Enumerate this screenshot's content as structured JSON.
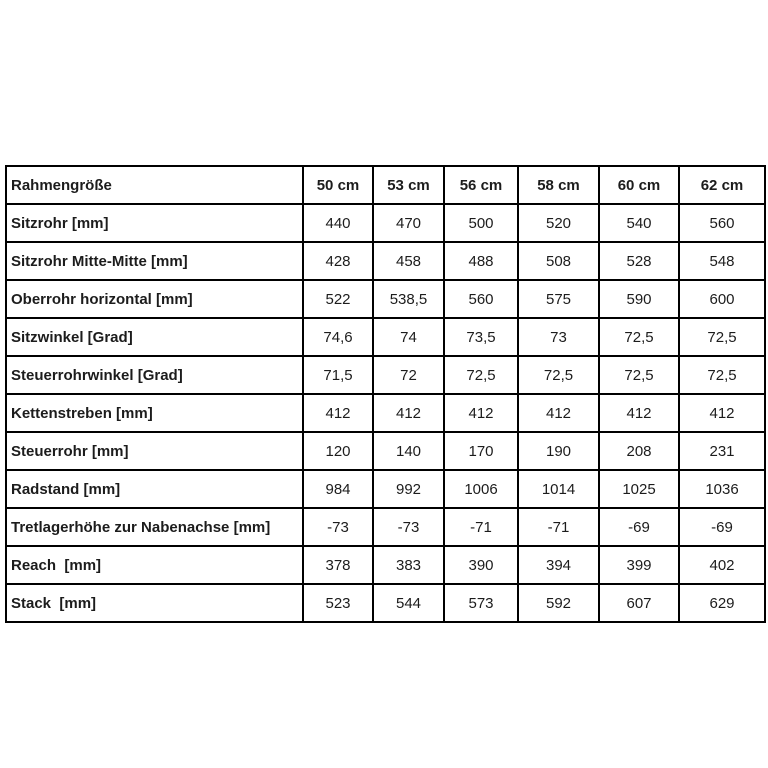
{
  "table": {
    "header": {
      "label": "Rahmengröße",
      "sizes": [
        "50 cm",
        "53 cm",
        "56 cm",
        "58 cm",
        "60 cm",
        "62 cm"
      ]
    },
    "rows": [
      {
        "label": "Sitzrohr [mm]",
        "values": [
          "440",
          "470",
          "500",
          "520",
          "540",
          "560"
        ]
      },
      {
        "label": "Sitzrohr Mitte-Mitte [mm]",
        "values": [
          "428",
          "458",
          "488",
          "508",
          "528",
          "548"
        ]
      },
      {
        "label": "Oberrohr horizontal [mm]",
        "values": [
          "522",
          "538,5",
          "560",
          "575",
          "590",
          "600"
        ]
      },
      {
        "label": "Sitzwinkel [Grad]",
        "values": [
          "74,6",
          "74",
          "73,5",
          "73",
          "72,5",
          "72,5"
        ]
      },
      {
        "label": "Steuerrohrwinkel [Grad]",
        "values": [
          "71,5",
          "72",
          "72,5",
          "72,5",
          "72,5",
          "72,5"
        ]
      },
      {
        "label": "Kettenstreben [mm]",
        "values": [
          "412",
          "412",
          "412",
          "412",
          "412",
          "412"
        ]
      },
      {
        "label": "Steuerrohr [mm]",
        "values": [
          "120",
          "140",
          "170",
          "190",
          "208",
          "231"
        ]
      },
      {
        "label": "Radstand [mm]",
        "values": [
          "984",
          "992",
          "1006",
          "1014",
          "1025",
          "1036"
        ]
      },
      {
        "label": "Tretlagerhöhe zur Nabenachse [mm]",
        "values": [
          "-73",
          "-73",
          "-71",
          "-71",
          "-69",
          "-69"
        ]
      },
      {
        "label": "Reach  [mm]",
        "values": [
          "378",
          "383",
          "390",
          "394",
          "399",
          "402"
        ]
      },
      {
        "label": "Stack  [mm]",
        "values": [
          "523",
          "544",
          "573",
          "592",
          "607",
          "629"
        ]
      }
    ],
    "colors": {
      "border": "#000000",
      "text": "#1c1c1c",
      "background": "#ffffff"
    }
  },
  "chart_data": {
    "type": "table",
    "title": "Rahmengröße",
    "columns": [
      "Rahmengröße",
      "50 cm",
      "53 cm",
      "56 cm",
      "58 cm",
      "60 cm",
      "62 cm"
    ],
    "rows": [
      [
        "Sitzrohr [mm]",
        "440",
        "470",
        "500",
        "520",
        "540",
        "560"
      ],
      [
        "Sitzrohr Mitte-Mitte [mm]",
        "428",
        "458",
        "488",
        "508",
        "528",
        "548"
      ],
      [
        "Oberrohr horizontal [mm]",
        "522",
        "538,5",
        "560",
        "575",
        "590",
        "600"
      ],
      [
        "Sitzwinkel [Grad]",
        "74,6",
        "74",
        "73,5",
        "73",
        "72,5",
        "72,5"
      ],
      [
        "Steuerrohrwinkel [Grad]",
        "71,5",
        "72",
        "72,5",
        "72,5",
        "72,5",
        "72,5"
      ],
      [
        "Kettenstreben [mm]",
        "412",
        "412",
        "412",
        "412",
        "412",
        "412"
      ],
      [
        "Steuerrohr [mm]",
        "120",
        "140",
        "170",
        "190",
        "208",
        "231"
      ],
      [
        "Radstand [mm]",
        "984",
        "992",
        "1006",
        "1014",
        "1025",
        "1036"
      ],
      [
        "Tretlagerhöhe zur Nabenachse [mm]",
        "-73",
        "-73",
        "-71",
        "-71",
        "-69",
        "-69"
      ],
      [
        "Reach [mm]",
        "378",
        "383",
        "390",
        "394",
        "399",
        "402"
      ],
      [
        "Stack [mm]",
        "523",
        "544",
        "573",
        "592",
        "607",
        "629"
      ]
    ]
  }
}
